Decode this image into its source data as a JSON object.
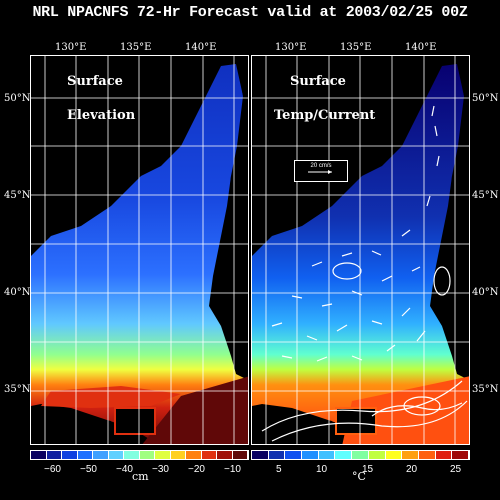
{
  "title": "NRL NPACNFS 72-Hr Forecast valid at 2003/02/25 00Z",
  "lon_labels": [
    "130°E",
    "135°E",
    "140°E"
  ],
  "lat_labels": [
    "50°N",
    "45°N",
    "40°N",
    "35°N"
  ],
  "left_panel": {
    "label_line1": "Surface",
    "label_line2": "Elevation"
  },
  "right_panel": {
    "label_line1": "Surface",
    "label_line2": "Temp/Current",
    "vector_scale": "20 cm/s"
  },
  "left_colorbar": {
    "ticks": [
      "−60",
      "−50",
      "−40",
      "−30",
      "−20",
      "−10"
    ],
    "unit": "cm",
    "colors": [
      "#0a0060",
      "#1020a0",
      "#1040e0",
      "#2070ff",
      "#40a0ff",
      "#60d0ff",
      "#80ffe0",
      "#a0ff80",
      "#e0ff40",
      "#ffd020",
      "#ff8010",
      "#e03010",
      "#a01008",
      "#600808"
    ]
  },
  "right_colorbar": {
    "ticks": [
      "5",
      "10",
      "15",
      "20",
      "25"
    ],
    "unit": "°C",
    "colors": [
      "#080060",
      "#1030b0",
      "#1050f0",
      "#2090ff",
      "#40c0ff",
      "#60ffff",
      "#80ffa0",
      "#c0ff40",
      "#ffff20",
      "#ffa010",
      "#ff6010",
      "#e02010",
      "#a00808"
    ]
  }
}
